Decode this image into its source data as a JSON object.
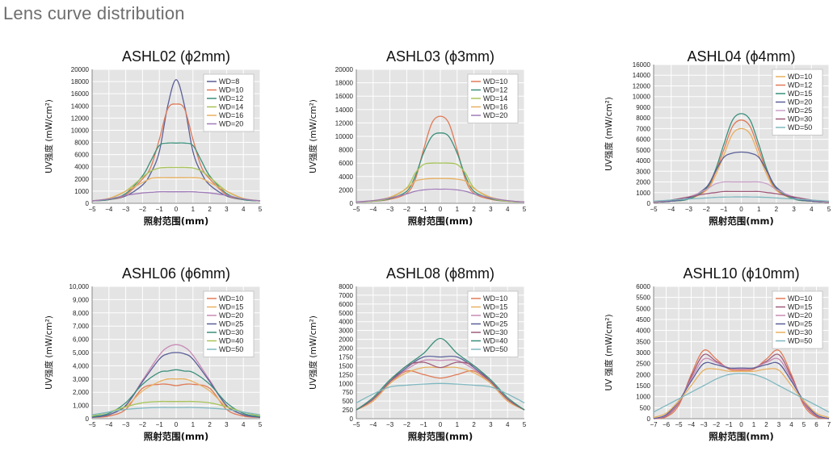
{
  "page": {
    "heading": "Lens curve distribution"
  },
  "chart_data": [
    {
      "type": "line",
      "title": "ASHL02 (ϕ2mm)",
      "xlabel": "照射范围(mm)",
      "ylabel": "UV强度 (mW/cm²)",
      "xlim": [
        -5,
        5
      ],
      "ylim": [
        0,
        20000
      ],
      "xticks": [
        "−5",
        "−4",
        "−3",
        "−2",
        "−1",
        "0",
        "1",
        "2",
        "3",
        "4",
        "5"
      ],
      "yticks": [
        "0",
        "1000",
        "2000",
        "4000",
        "6000",
        "8000",
        "10000",
        "12000",
        "14000",
        "16000",
        "18000",
        "20000"
      ],
      "grid": true,
      "legend_position": "top-right",
      "x": [
        -5,
        -4,
        -3,
        -2,
        -1.5,
        -1,
        -0.5,
        0,
        0.5,
        1,
        1.5,
        2,
        3,
        4,
        5
      ],
      "series": [
        {
          "name": "WD=8",
          "color": "#5b5f97",
          "values": [
            200,
            300,
            600,
            1500,
            3000,
            6500,
            14000,
            18300,
            14000,
            6500,
            3000,
            1500,
            600,
            300,
            200
          ]
        },
        {
          "name": "WD=10",
          "color": "#e07a57",
          "values": [
            200,
            300,
            700,
            2000,
            4000,
            8500,
            13500,
            14300,
            13500,
            8500,
            4000,
            2000,
            700,
            300,
            200
          ]
        },
        {
          "name": "WD=12",
          "color": "#3a8f7a",
          "values": [
            200,
            300,
            800,
            2500,
            5000,
            7500,
            7900,
            7900,
            7900,
            7500,
            5000,
            2500,
            800,
            300,
            200
          ]
        },
        {
          "name": "WD=14",
          "color": "#a8c45a",
          "values": [
            200,
            400,
            1000,
            2300,
            3300,
            3800,
            3900,
            3900,
            3900,
            3800,
            3300,
            2300,
            1000,
            400,
            200
          ]
        },
        {
          "name": "WD=16",
          "color": "#e8b060",
          "values": [
            200,
            400,
            1000,
            1700,
            2100,
            2200,
            2200,
            2200,
            2200,
            2200,
            2100,
            1700,
            1000,
            400,
            200
          ]
        },
        {
          "name": "WD=20",
          "color": "#9f7bb8",
          "values": [
            200,
            350,
            650,
            850,
            900,
            950,
            950,
            950,
            950,
            950,
            900,
            850,
            650,
            350,
            200
          ]
        }
      ]
    },
    {
      "type": "line",
      "title": "ASHL03 (ϕ3mm)",
      "xlabel": "照射范围(mm)",
      "ylabel": "UV强度 (mW/cm²)",
      "xlim": [
        -5,
        5
      ],
      "ylim": [
        0,
        20000
      ],
      "xticks": [
        "−5",
        "−4",
        "−3",
        "−2",
        "−1",
        "0",
        "1",
        "2",
        "3",
        "4",
        "5"
      ],
      "yticks": [
        "0",
        "2000",
        "4000",
        "6000",
        "8000",
        "10000",
        "12000",
        "14000",
        "16000",
        "18000",
        "20000"
      ],
      "grid": true,
      "legend_position": "top-right",
      "x": [
        -5,
        -4,
        -3,
        -2,
        -1.5,
        -1,
        -0.5,
        0,
        0.5,
        1,
        1.5,
        2,
        3,
        4,
        5
      ],
      "series": [
        {
          "name": "WD=10",
          "color": "#e07a57",
          "values": [
            200,
            300,
            600,
            1500,
            3500,
            8000,
            12000,
            13000,
            12000,
            8000,
            3500,
            1500,
            600,
            300,
            200
          ]
        },
        {
          "name": "WD=12",
          "color": "#3a8f7a",
          "values": [
            200,
            300,
            700,
            1800,
            4000,
            7500,
            10000,
            10500,
            10000,
            7500,
            4000,
            1800,
            700,
            300,
            200
          ]
        },
        {
          "name": "WD=14",
          "color": "#a8c45a",
          "values": [
            200,
            300,
            800,
            2300,
            4500,
            5800,
            6000,
            6000,
            6000,
            5800,
            4500,
            2300,
            800,
            300,
            200
          ]
        },
        {
          "name": "WD=16",
          "color": "#e8b060",
          "values": [
            200,
            400,
            900,
            2200,
            3300,
            3600,
            3700,
            3700,
            3700,
            3600,
            3300,
            2200,
            900,
            400,
            200
          ]
        },
        {
          "name": "WD=20",
          "color": "#9f7bb8",
          "values": [
            200,
            400,
            800,
            1400,
            1800,
            2000,
            2100,
            2100,
            2100,
            2000,
            1800,
            1400,
            800,
            400,
            200
          ]
        }
      ]
    },
    {
      "type": "line",
      "title": "ASHL04 (ϕ4mm)",
      "xlabel": "照射范围(mm)",
      "ylabel": "UV强度 (mW/cm²)",
      "xlim": [
        -5,
        5
      ],
      "ylim": [
        0,
        16000
      ],
      "xticks": [
        "−5",
        "−4",
        "−3",
        "−2",
        "−1",
        "0",
        "1",
        "2",
        "3",
        "4",
        "5"
      ],
      "yticks": [
        "0",
        "1000",
        "2000",
        "3000",
        "4000",
        "5000",
        "6000",
        "7000",
        "8000",
        "9000",
        "10000",
        "12000",
        "14000",
        "16000"
      ],
      "grid": true,
      "legend_position": "top-right",
      "x": [
        -5,
        -4,
        -3,
        -2,
        -1.5,
        -1,
        -0.5,
        0,
        0.5,
        1,
        1.5,
        2,
        3,
        4,
        5
      ],
      "series": [
        {
          "name": "WD=10",
          "color": "#e8b060",
          "values": [
            100,
            200,
            400,
            1200,
            2500,
            4500,
            6500,
            7000,
            6500,
            4500,
            2500,
            1200,
            400,
            200,
            100
          ]
        },
        {
          "name": "WD=12",
          "color": "#e07a57",
          "values": [
            100,
            200,
            400,
            1300,
            2800,
            5000,
            7200,
            7800,
            7200,
            5000,
            2800,
            1300,
            400,
            200,
            100
          ]
        },
        {
          "name": "WD=15",
          "color": "#3a8f7a",
          "values": [
            100,
            200,
            400,
            1400,
            3000,
            5500,
            7800,
            8400,
            7800,
            5500,
            3000,
            1400,
            400,
            200,
            100
          ]
        },
        {
          "name": "WD=20",
          "color": "#5b5f97",
          "values": [
            100,
            200,
            500,
            1500,
            2900,
            4300,
            4700,
            4800,
            4700,
            4300,
            2900,
            1500,
            500,
            200,
            100
          ]
        },
        {
          "name": "WD=25",
          "color": "#c9a0c9",
          "values": [
            100,
            300,
            600,
            1300,
            1800,
            2000,
            2000,
            2000,
            2000,
            2000,
            1800,
            1300,
            600,
            300,
            100
          ]
        },
        {
          "name": "WD=30",
          "color": "#9f5b7a",
          "values": [
            150,
            300,
            600,
            900,
            1000,
            1100,
            1100,
            1100,
            1100,
            1100,
            1000,
            900,
            600,
            300,
            150
          ]
        },
        {
          "name": "WD=50",
          "color": "#7fb8c0",
          "values": [
            200,
            300,
            400,
            500,
            550,
            580,
            600,
            600,
            600,
            580,
            550,
            500,
            400,
            300,
            200
          ]
        }
      ]
    },
    {
      "type": "line",
      "title": "ASHL06 (ϕ6mm)",
      "xlabel": "照射范围(mm)",
      "ylabel": "UV强度 (mW/cm²)",
      "xlim": [
        -5,
        5
      ],
      "ylim": [
        0,
        10000
      ],
      "xticks": [
        "−5",
        "−4",
        "−3",
        "−2",
        "−1",
        "0",
        "1",
        "2",
        "3",
        "4",
        "5"
      ],
      "yticks": [
        "0",
        "1,000",
        "2,000",
        "3,000",
        "4,000",
        "5,000",
        "6,000",
        "7,000",
        "8,000",
        "9,000",
        "10,000"
      ],
      "grid": true,
      "legend_position": "top-right",
      "x": [
        -5,
        -4,
        -3,
        -2,
        -1,
        -0.5,
        0,
        0.5,
        1,
        2,
        3,
        4,
        5
      ],
      "series": [
        {
          "name": "WD=10",
          "color": "#e07a57",
          "values": [
            100,
            200,
            700,
            2300,
            2600,
            2600,
            2500,
            2600,
            2600,
            2300,
            700,
            200,
            100
          ]
        },
        {
          "name": "WD=15",
          "color": "#e8b060",
          "values": [
            100,
            300,
            900,
            2100,
            2800,
            3000,
            3000,
            3000,
            2800,
            2100,
            900,
            300,
            100
          ]
        },
        {
          "name": "WD=20",
          "color": "#c98ab5",
          "values": [
            100,
            300,
            1000,
            2900,
            4800,
            5400,
            5600,
            5400,
            4800,
            2900,
            1000,
            300,
            100
          ]
        },
        {
          "name": "WD=25",
          "color": "#5b5f97",
          "values": [
            100,
            300,
            1000,
            2800,
            4500,
            4900,
            5000,
            4900,
            4500,
            2800,
            1000,
            300,
            100
          ]
        },
        {
          "name": "WD=30",
          "color": "#3a8f7a",
          "values": [
            150,
            400,
            1200,
            2600,
            3500,
            3600,
            3700,
            3600,
            3500,
            2600,
            1200,
            400,
            150
          ]
        },
        {
          "name": "WD=40",
          "color": "#a8c45a",
          "values": [
            200,
            500,
            900,
            1200,
            1300,
            1300,
            1300,
            1300,
            1300,
            1200,
            900,
            500,
            200
          ]
        },
        {
          "name": "WD=50",
          "color": "#7fb8c0",
          "values": [
            300,
            500,
            700,
            800,
            850,
            850,
            850,
            850,
            850,
            800,
            700,
            500,
            300
          ]
        }
      ]
    },
    {
      "type": "line",
      "title": "ASHL08 (ϕ8mm)",
      "xlabel": "照射范围(mm)",
      "ylabel": "UV强度 (mW/cm²)",
      "xlim": [
        -5,
        5
      ],
      "ylim": [
        0,
        8000
      ],
      "ylim_note": "axis break between 2000 and 2000",
      "xticks": [
        "−5",
        "−4",
        "−3",
        "−2",
        "−1",
        "0",
        "1",
        "2",
        "3",
        "4",
        "5"
      ],
      "yticks": [
        "0",
        "250",
        "500",
        "750",
        "1000",
        "1250",
        "1500",
        "1750",
        "2000",
        "2000",
        "3000",
        "4000",
        "5000",
        "6000",
        "7000",
        "8000"
      ],
      "grid": true,
      "legend_position": "top-right",
      "x": [
        -5,
        -4,
        -3,
        -2,
        -1,
        0,
        1,
        2,
        3,
        4,
        5
      ],
      "series": [
        {
          "name": "WD=10",
          "color": "#e07a57",
          "values": [
            250,
            500,
            1000,
            1350,
            1250,
            1150,
            1250,
            1350,
            1000,
            500,
            250
          ]
        },
        {
          "name": "WD=15",
          "color": "#e8b060",
          "values": [
            250,
            500,
            1000,
            1300,
            1450,
            1450,
            1450,
            1300,
            1000,
            500,
            250
          ]
        },
        {
          "name": "WD=20",
          "color": "#c98ab5",
          "values": [
            250,
            550,
            1050,
            1400,
            1650,
            1650,
            1650,
            1400,
            1050,
            550,
            250
          ]
        },
        {
          "name": "WD=25",
          "color": "#5b5f97",
          "values": [
            250,
            550,
            1050,
            1450,
            1750,
            1750,
            1750,
            1450,
            1050,
            550,
            250
          ]
        },
        {
          "name": "WD=30",
          "color": "#9f5b7a",
          "values": [
            250,
            550,
            1050,
            1500,
            1600,
            1450,
            1600,
            1500,
            1050,
            550,
            250
          ]
        },
        {
          "name": "WD=40",
          "color": "#3a8f7a",
          "values": [
            250,
            600,
            1100,
            1500,
            1850,
            2100,
            1850,
            1500,
            1100,
            600,
            250
          ]
        },
        {
          "name": "WD=50",
          "color": "#7fb8c0",
          "values": [
            450,
            700,
            900,
            950,
            980,
            1000,
            980,
            950,
            900,
            700,
            450
          ]
        }
      ]
    },
    {
      "type": "line",
      "title": "ASHL10 (ϕ10mm)",
      "xlabel": "照射范围(mm)",
      "ylabel": "UV   强度 (mW/cm²)",
      "xlim": [
        -7,
        7
      ],
      "ylim": [
        0,
        6000
      ],
      "xticks": [
        "−7",
        "−6",
        "−5",
        "−4",
        "−3",
        "−2",
        "−1",
        "0",
        "1",
        "2",
        "3",
        "4",
        "5",
        "6",
        "7"
      ],
      "yticks": [
        "0",
        "500",
        "1000",
        "1500",
        "2000",
        "2500",
        "3000",
        "3500",
        "4000",
        "4500",
        "5000",
        "5500",
        "6000"
      ],
      "grid": true,
      "legend_position": "top-right",
      "x": [
        -7,
        -6,
        -5,
        -4,
        -3,
        -2,
        -1,
        0,
        1,
        2,
        3,
        4,
        5,
        6,
        7
      ],
      "series": [
        {
          "name": "WD=10",
          "color": "#e07a57",
          "values": [
            0,
            80,
            600,
            2000,
            3100,
            2700,
            2250,
            2200,
            2250,
            2700,
            3100,
            2000,
            600,
            80,
            0
          ]
        },
        {
          "name": "WD=15",
          "color": "#9f5b7a",
          "values": [
            0,
            120,
            700,
            1900,
            2900,
            2600,
            2300,
            2250,
            2300,
            2600,
            2900,
            1900,
            700,
            120,
            0
          ]
        },
        {
          "name": "WD=20",
          "color": "#c98ab5",
          "values": [
            0,
            150,
            750,
            1800,
            2700,
            2550,
            2300,
            2250,
            2300,
            2550,
            2700,
            1800,
            750,
            150,
            0
          ]
        },
        {
          "name": "WD=25",
          "color": "#5b5f97",
          "values": [
            0,
            180,
            800,
            1700,
            2500,
            2450,
            2300,
            2300,
            2300,
            2450,
            2500,
            1700,
            800,
            180,
            0
          ]
        },
        {
          "name": "WD=30",
          "color": "#e8b060",
          "values": [
            50,
            250,
            800,
            1500,
            2200,
            2250,
            2150,
            2150,
            2150,
            2250,
            2200,
            1500,
            800,
            250,
            50
          ]
        },
        {
          "name": "WD=50",
          "color": "#7fb8c0",
          "values": [
            300,
            600,
            900,
            1200,
            1500,
            1800,
            2000,
            2050,
            2000,
            1800,
            1500,
            1200,
            900,
            600,
            300
          ]
        }
      ]
    }
  ]
}
